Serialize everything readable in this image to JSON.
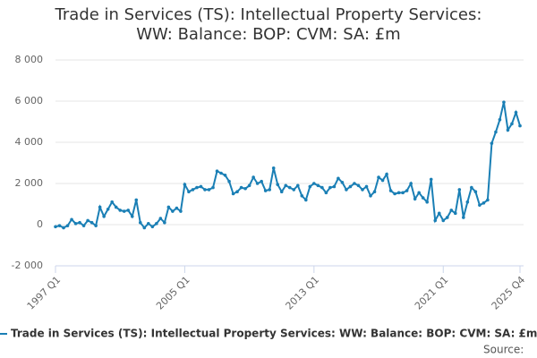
{
  "chart_data": {
    "type": "line",
    "title": "Trade in Services (TS): Intellectual Property Services: WW: Balance: BOP: CVM: SA: £m",
    "source": "Source:",
    "categories": [
      "1997 Q1",
      null,
      null,
      null,
      null,
      null,
      null,
      null,
      null,
      null,
      null,
      null,
      null,
      null,
      null,
      null,
      null,
      null,
      null,
      null,
      null,
      null,
      null,
      null,
      null,
      null,
      null,
      null,
      null,
      null,
      null,
      null,
      "2005 Q1",
      null,
      null,
      null,
      null,
      null,
      null,
      null,
      null,
      null,
      null,
      null,
      null,
      null,
      null,
      null,
      null,
      null,
      null,
      null,
      null,
      null,
      null,
      null,
      null,
      null,
      null,
      null,
      null,
      null,
      null,
      null,
      "2013 Q1",
      null,
      null,
      null,
      null,
      null,
      null,
      null,
      null,
      null,
      null,
      null,
      null,
      null,
      null,
      null,
      null,
      null,
      null,
      null,
      null,
      null,
      null,
      null,
      null,
      null,
      null,
      null,
      null,
      null,
      null,
      null,
      "2021 Q1",
      null,
      null,
      null,
      null,
      null,
      null,
      null,
      null,
      null,
      null,
      null,
      null,
      null,
      null,
      null,
      null,
      null,
      null,
      "2025 Q4"
    ],
    "series": [
      {
        "name": "Trade in Services (TS): Intellectual Property Services: WW: Balance: BOP: CVM: SA: £m",
        "color": "#1a7fb5",
        "values": [
          -100,
          -50,
          -150,
          -50,
          250,
          50,
          100,
          -50,
          200,
          100,
          -50,
          850,
          400,
          750,
          1100,
          850,
          700,
          650,
          700,
          400,
          1200,
          100,
          -150,
          50,
          -100,
          50,
          300,
          100,
          850,
          650,
          800,
          650,
          1950,
          1600,
          1700,
          1800,
          1850,
          1700,
          1700,
          1800,
          2600,
          2500,
          2400,
          2100,
          1500,
          1600,
          1800,
          1750,
          1900,
          2300,
          2000,
          2100,
          1650,
          1700,
          2750,
          1950,
          1600,
          1900,
          1800,
          1700,
          1900,
          1400,
          1200,
          1850,
          2000,
          1900,
          1800,
          1550,
          1800,
          1850,
          2250,
          2050,
          1700,
          1850,
          2000,
          1900,
          1700,
          1850,
          1400,
          1600,
          2300,
          2150,
          2450,
          1650,
          1500,
          1550,
          1550,
          1650,
          2000,
          1250,
          1550,
          1300,
          1100,
          2200,
          200,
          550,
          200,
          350,
          700,
          550,
          1700,
          350,
          1100,
          1800,
          1600,
          950,
          1050,
          1200,
          3950,
          4500,
          5100,
          5950,
          4600,
          4900,
          5450,
          4800
        ]
      }
    ],
    "ylim": [
      -2000,
      8000
    ],
    "yticks": [
      {
        "value": -2000,
        "label": "-2 000"
      },
      0,
      {
        "value": 2000,
        "label": "2 000"
      },
      {
        "value": 4000,
        "label": "4 000"
      },
      {
        "value": 6000,
        "label": "6 000"
      },
      {
        "value": 8000,
        "label": "8 000"
      }
    ],
    "grid": true
  }
}
